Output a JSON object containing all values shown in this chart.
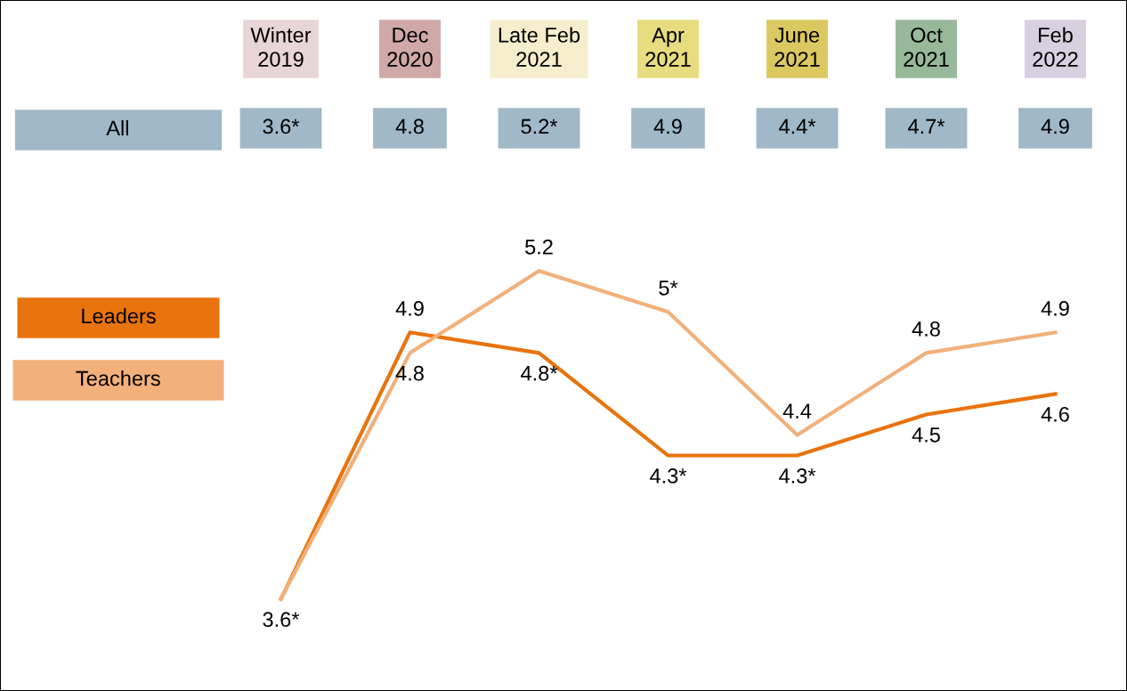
{
  "chart_data": {
    "type": "line",
    "categories": [
      "Winter\n2019",
      "Dec\n2020",
      "Late Feb\n2021",
      "Apr\n2021",
      "June\n2021",
      "Oct\n2021",
      "Feb\n2022"
    ],
    "series": [
      {
        "name": "Leaders",
        "color": "#e8730c",
        "values": [
          3.6,
          4.9,
          4.8,
          4.3,
          4.3,
          4.5,
          4.6
        ],
        "value_labels": [
          "3.6*",
          "4.9",
          "4.8*",
          "4.3*",
          "4.3*",
          "4.5",
          "4.6"
        ]
      },
      {
        "name": "Teachers",
        "color": "#f2b07a",
        "values": [
          3.6,
          4.8,
          5.2,
          5.0,
          4.4,
          4.8,
          4.9
        ],
        "value_labels": [
          null,
          "4.8",
          "5.2",
          "5*",
          "4.4",
          "4.8",
          "4.9"
        ]
      }
    ],
    "tick_labels": false,
    "legend": "left",
    "marker": "none",
    "line_style": "solid",
    "annotations": [
      "All",
      "3.6*",
      "4.8",
      "5.2*",
      "4.9",
      "4.4*",
      "4.7*",
      "4.9"
    ]
  }
}
